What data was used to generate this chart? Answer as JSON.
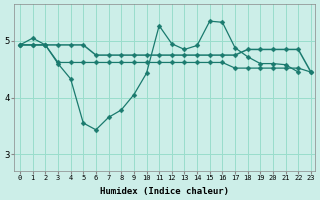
{
  "xlabel": "Humidex (Indice chaleur)",
  "bg_color": "#cceee8",
  "grid_color": "#99ddcc",
  "line_color": "#1a7a6e",
  "xlim": [
    -0.5,
    23.3
  ],
  "ylim": [
    2.7,
    5.65
  ],
  "yticks": [
    3,
    4,
    5
  ],
  "xticks": [
    0,
    1,
    2,
    3,
    4,
    5,
    6,
    7,
    8,
    9,
    10,
    11,
    12,
    13,
    14,
    15,
    16,
    17,
    18,
    19,
    20,
    21,
    22,
    23
  ],
  "series1_x": [
    0,
    1,
    2,
    3,
    4,
    5,
    6,
    7,
    8,
    9,
    10,
    11,
    12,
    13,
    14,
    15,
    16,
    17,
    18,
    19,
    20,
    21,
    22,
    23
  ],
  "series1_y": [
    4.93,
    5.05,
    4.93,
    4.6,
    4.33,
    3.55,
    3.43,
    3.65,
    3.78,
    4.05,
    4.43,
    5.27,
    4.95,
    4.85,
    4.92,
    5.35,
    5.33,
    4.88,
    4.72,
    4.6,
    4.6,
    4.58,
    4.45,
    null
  ],
  "series2_x": [
    0,
    1,
    2,
    3,
    4,
    5,
    6,
    7,
    8,
    9,
    10,
    11,
    12,
    13,
    14,
    15,
    16,
    17,
    18,
    19,
    20,
    21,
    22,
    23
  ],
  "series2_y": [
    4.93,
    4.93,
    4.93,
    4.93,
    4.93,
    4.93,
    4.75,
    4.75,
    4.75,
    4.75,
    4.75,
    4.75,
    4.75,
    4.75,
    4.75,
    4.75,
    4.75,
    4.75,
    4.85,
    4.85,
    4.85,
    4.85,
    4.85,
    4.45
  ],
  "series3_x": [
    0,
    1,
    2,
    3,
    4,
    5,
    6,
    7,
    8,
    9,
    10,
    11,
    12,
    13,
    14,
    15,
    16,
    17,
    18,
    19,
    20,
    21,
    22,
    23
  ],
  "series3_y": [
    4.93,
    4.93,
    4.93,
    4.62,
    4.62,
    4.62,
    4.62,
    4.62,
    4.62,
    4.62,
    4.62,
    4.62,
    4.62,
    4.62,
    4.62,
    4.62,
    4.62,
    4.52,
    4.52,
    4.52,
    4.52,
    4.52,
    4.52,
    4.45
  ]
}
